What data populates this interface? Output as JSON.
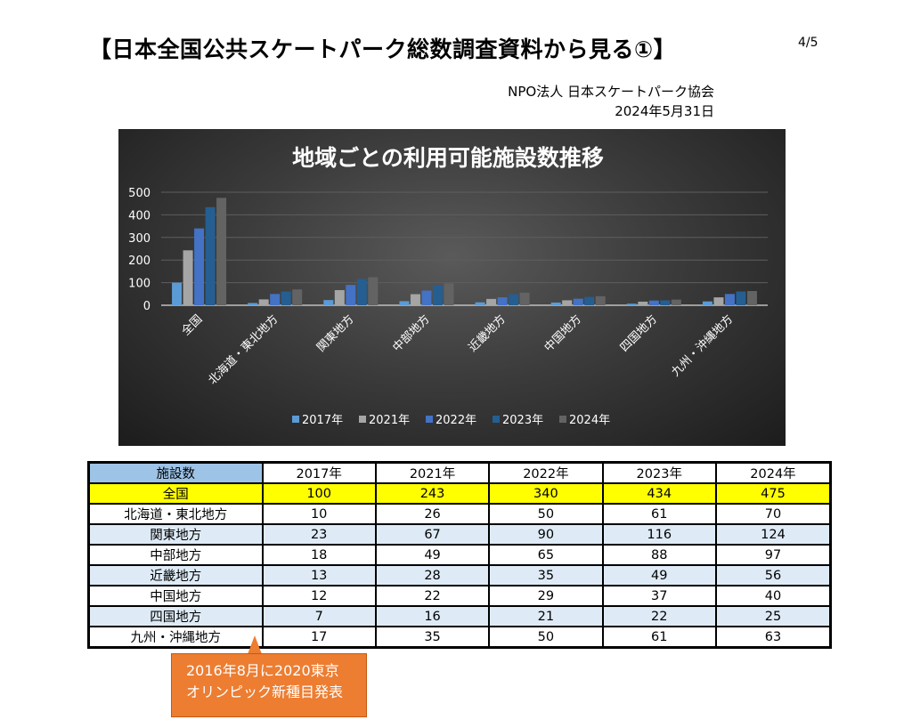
{
  "header": {
    "title": "【日本全国公共スケートパーク総数調査資料から見る①】",
    "page": "4/5",
    "organization": "NPO法人 日本スケートパーク協会",
    "date": "2024年5月31日"
  },
  "chart_data": {
    "type": "bar",
    "title": "地域ごとの利用可能施設数推移",
    "categories": [
      "全国",
      "北海道・東北地方",
      "関東地方",
      "中部地方",
      "近畿地方",
      "中国地方",
      "四国地方",
      "九州・沖縄地方"
    ],
    "series": [
      {
        "name": "2017年",
        "color": "#5b9bd5",
        "values": [
          100,
          10,
          23,
          18,
          13,
          12,
          7,
          17
        ]
      },
      {
        "name": "2021年",
        "color": "#a5a5a5",
        "values": [
          243,
          26,
          67,
          49,
          28,
          22,
          16,
          35
        ]
      },
      {
        "name": "2022年",
        "color": "#4472c4",
        "values": [
          340,
          50,
          90,
          65,
          35,
          29,
          21,
          50
        ]
      },
      {
        "name": "2023年",
        "color": "#255e91",
        "values": [
          434,
          61,
          116,
          88,
          49,
          37,
          22,
          61
        ]
      },
      {
        "name": "2024年",
        "color": "#636363",
        "values": [
          475,
          70,
          124,
          97,
          56,
          40,
          25,
          63
        ]
      }
    ],
    "yticks": [
      "0",
      "100",
      "200",
      "300",
      "400",
      "500"
    ],
    "ylim": [
      0,
      500
    ],
    "grid": true,
    "legend": "bottom"
  },
  "table": {
    "header": [
      "施設数",
      "2017年",
      "2021年",
      "2022年",
      "2023年",
      "2024年"
    ],
    "rows": [
      [
        "全国",
        "100",
        "243",
        "340",
        "434",
        "475"
      ],
      [
        "北海道・東北地方",
        "10",
        "26",
        "50",
        "61",
        "70"
      ],
      [
        "関東地方",
        "23",
        "67",
        "90",
        "116",
        "124"
      ],
      [
        "中部地方",
        "18",
        "49",
        "65",
        "88",
        "97"
      ],
      [
        "近畿地方",
        "13",
        "28",
        "35",
        "49",
        "56"
      ],
      [
        "中国地方",
        "12",
        "22",
        "29",
        "37",
        "40"
      ],
      [
        "四国地方",
        "7",
        "16",
        "21",
        "22",
        "25"
      ],
      [
        "九州・沖縄地方",
        "17",
        "35",
        "50",
        "61",
        "63"
      ]
    ]
  },
  "callout": {
    "line1": "2016年8月に2020東京",
    "line2": "オリンピック新種目発表"
  }
}
